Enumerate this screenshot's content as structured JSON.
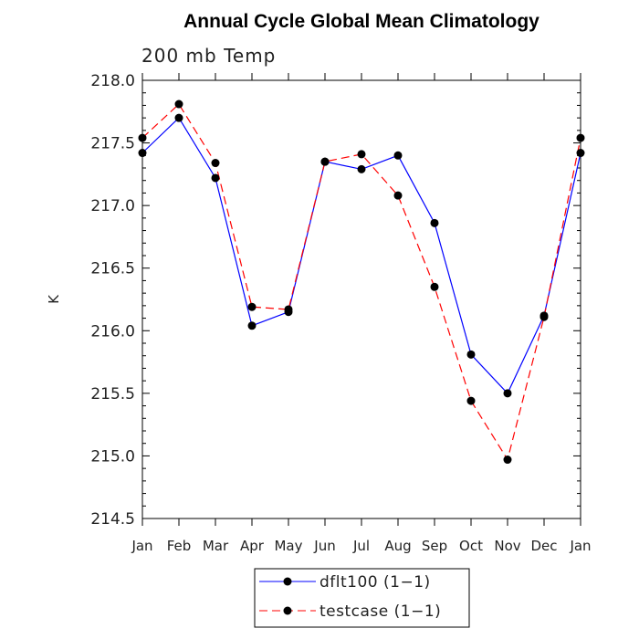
{
  "chart_data": {
    "type": "line",
    "title": "Annual Cycle Global Mean Climatology",
    "subtitle": "200 mb Temp",
    "xlabel": "",
    "ylabel": "K",
    "categories": [
      "Jan",
      "Feb",
      "Mar",
      "Apr",
      "May",
      "Jun",
      "Jul",
      "Aug",
      "Sep",
      "Oct",
      "Nov",
      "Dec",
      "Jan"
    ],
    "yticks": [
      "214.5",
      "215.0",
      "215.5",
      "216.0",
      "216.5",
      "217.0",
      "217.5",
      "218.0"
    ],
    "ylim": [
      214.5,
      218.0
    ],
    "series": [
      {
        "name": "dflt100 (1−1)",
        "color": "#0000ff",
        "dash": "solid",
        "values": [
          217.42,
          217.7,
          217.22,
          216.04,
          216.15,
          217.35,
          217.29,
          217.4,
          216.86,
          215.81,
          215.5,
          216.12,
          217.42
        ]
      },
      {
        "name": "testcase (1−1)",
        "color": "#ff0000",
        "dash": "dashed",
        "values": [
          217.54,
          217.81,
          217.34,
          216.19,
          216.17,
          217.35,
          217.41,
          217.08,
          216.35,
          215.44,
          214.97,
          216.11,
          217.54
        ]
      }
    ],
    "legend_position": "bottom-center"
  }
}
